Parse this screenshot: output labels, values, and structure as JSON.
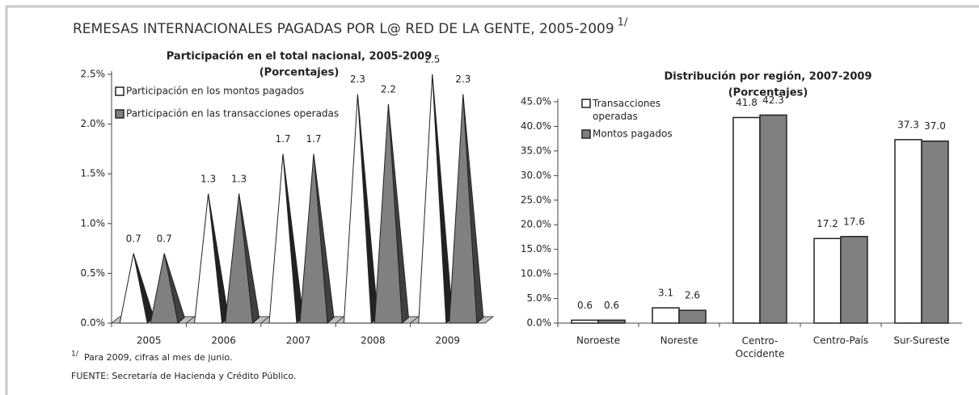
{
  "title": "REMESAS INTERNACIONALES PAGADAS POR L@ RED DE LA GENTE, 2005-2009",
  "title_mark": "1/",
  "footnote": {
    "mark": "1/",
    "text": "Para 2009, cifras al mes de junio."
  },
  "source": "FUENTE: Secretaría de Hacienda y Crédito Público.",
  "chart_data": [
    {
      "type": "pyramid",
      "title": "Participación en el total nacional, 2005-2009",
      "subtitle": "(Porcentajes)",
      "categories": [
        "2005",
        "2006",
        "2007",
        "2008",
        "2009"
      ],
      "series": [
        {
          "name": "Participación en los montos pagados",
          "color": "#ffffff",
          "values": [
            0.7,
            1.3,
            1.7,
            2.3,
            2.5
          ]
        },
        {
          "name": "Participación en las transacciones operadas",
          "color": "#808080",
          "values": [
            0.7,
            1.3,
            1.7,
            2.2,
            2.3
          ]
        }
      ],
      "ylim": [
        0,
        2.5
      ],
      "yticks": [
        {
          "value": 0,
          "label": "0.0%"
        },
        {
          "value": 0.5,
          "label": "0.5%"
        },
        {
          "value": 1,
          "label": "1.0%"
        },
        {
          "value": 1.5,
          "label": "1.5%"
        },
        {
          "value": 2,
          "label": "2.0%"
        },
        {
          "value": 2.5,
          "label": "2.5%"
        }
      ],
      "grid": false,
      "legend": "top-left"
    },
    {
      "type": "bar",
      "title": "Distribución por región, 2007-2009",
      "subtitle": "(Porcentajes)",
      "categories": [
        "Noroeste",
        "Noreste",
        "Centro-Occidente",
        "Centro-País",
        "Sur-Sureste"
      ],
      "series": [
        {
          "name": "Transacciones operadas",
          "color": "#ffffff",
          "values": [
            0.6,
            3.1,
            41.8,
            17.2,
            37.3
          ]
        },
        {
          "name": "Montos pagados",
          "color": "#808080",
          "values": [
            0.6,
            2.6,
            42.3,
            17.6,
            37.0
          ],
          "value_labels": [
            "0.6",
            "2.6",
            "42.3",
            "17.6",
            "37.0"
          ]
        }
      ],
      "ylim": [
        0,
        45
      ],
      "yticks": [
        {
          "value": 0,
          "label": "0.0%"
        },
        {
          "value": 5,
          "label": "5.0%"
        },
        {
          "value": 10,
          "label": "10.0%"
        },
        {
          "value": 15,
          "label": "15.0%"
        },
        {
          "value": 20,
          "label": "20.0%"
        },
        {
          "value": 25,
          "label": "25.0%"
        },
        {
          "value": 30,
          "label": "30.0%"
        },
        {
          "value": 35,
          "label": "35.0%"
        },
        {
          "value": 40,
          "label": "40.0%"
        },
        {
          "value": 45,
          "label": "45.0%"
        }
      ],
      "grid": false,
      "legend": "top-left"
    }
  ]
}
